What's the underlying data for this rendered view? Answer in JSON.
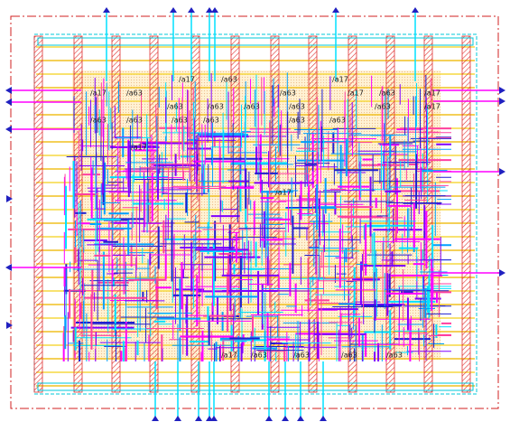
{
  "cell_labels": [
    "/a17",
    "/a63",
    "/a17",
    "/a17",
    "/a63",
    "/a63",
    "/a17",
    "/a63",
    "/a17",
    "/a63",
    "/a63",
    "/a63",
    "/a63",
    "/a63",
    "/a17",
    "/a63",
    "/a63",
    "/a63",
    "/a63",
    "/a63",
    "/a63",
    "/a17",
    "/a17",
    "/a17",
    "/a63",
    "/a63",
    "/a63",
    "/a63"
  ]
}
